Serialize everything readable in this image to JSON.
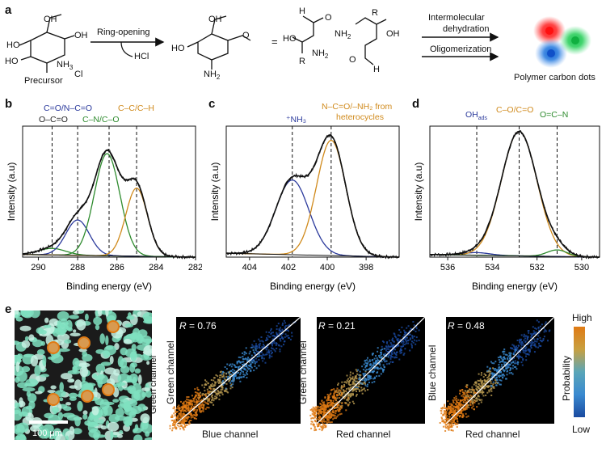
{
  "panel_letters": {
    "a": "a",
    "b": "b",
    "c": "c",
    "d": "d",
    "e": "e"
  },
  "panel_a": {
    "reaction1_label": "Ring-opening",
    "byproduct": "HCl",
    "precursor_label": "Precursor",
    "nh3": "NH",
    "nh3_sub": "3",
    "cl": "Cl",
    "nh2": "NH",
    "nh2_sub": "2",
    "ho": "HO",
    "oh": "OH",
    "o": "O",
    "h": "H",
    "r": "R",
    "equals": "=",
    "step2_line1": "Intermolecular",
    "step2_line2": "dehydration",
    "step3": "Oligomerization",
    "product_label": "Polymer carbon dots"
  },
  "panel_b": {
    "labels": [
      "C=O/N–C=O",
      "O–C=O",
      "C–N/C–O",
      "C–C/C–H"
    ],
    "label_colors": [
      "#2b3a9c",
      "#222222",
      "#2e8b2e",
      "#d08a1c"
    ]
  },
  "panel_c": {
    "labels": [
      "⁺NH₃",
      "N–C=O/–NH₂ from",
      "heterocycles"
    ],
    "label_colors": [
      "#2b3a9c",
      "#d08a1c",
      "#d08a1c"
    ]
  },
  "panel_d": {
    "labels": [
      "OH",
      "ads",
      "C–O/C=O",
      "O=C–N"
    ],
    "label_colors": [
      "#2b3a9c",
      "#2b3a9c",
      "#d08a1c",
      "#2e8b2e"
    ]
  },
  "panel_e": {
    "scale_bar": "100 μm",
    "colorbar_label": "Probability",
    "colorbar_high": "High",
    "colorbar_low": "Low",
    "plots": [
      {
        "r_label": "R",
        "r_value": "= 0.76",
        "xlabel": "Blue channel",
        "ylabel": "Green channel"
      },
      {
        "r_label": "R",
        "r_value": "= 0.21",
        "xlabel": "Red channel",
        "ylabel": "Green channel"
      },
      {
        "r_label": "R",
        "r_value": "= 0.48",
        "xlabel": "Red channel",
        "ylabel": "Blue channel"
      }
    ]
  },
  "chart_data": [
    {
      "type": "line",
      "panel": "b",
      "xlabel": "Binding energy (eV)",
      "ylabel": "Intensity (a.u)",
      "xlim": [
        290.8,
        282
      ],
      "x_reversed": true,
      "xticks": [
        290,
        288,
        286,
        284,
        282
      ],
      "dashed_lines": [
        289.3,
        288.0,
        286.4,
        285.0
      ],
      "peaks": [
        {
          "center": 289.3,
          "amp": 0.05,
          "width": 0.7,
          "color": "#2e8b2e"
        },
        {
          "center": 288.0,
          "amp": 0.27,
          "width": 0.6,
          "color": "#2b3a9c"
        },
        {
          "center": 286.5,
          "amp": 0.78,
          "width": 0.65,
          "color": "#2e8b2e"
        },
        {
          "center": 285.0,
          "amp": 0.52,
          "width": 0.55,
          "color": "#d08a1c"
        }
      ],
      "baseline": [
        0.02,
        0.0
      ]
    },
    {
      "type": "line",
      "panel": "c",
      "xlabel": "Binding energy (eV)",
      "ylabel": "Intensity (a.u)",
      "xlim": [
        405.2,
        396.3
      ],
      "x_reversed": true,
      "xticks": [
        404,
        402,
        400,
        398
      ],
      "dashed_lines": [
        401.8,
        399.8
      ],
      "peaks": [
        {
          "center": 401.8,
          "amp": 0.57,
          "width": 0.85,
          "color": "#2b3a9c"
        },
        {
          "center": 399.8,
          "amp": 0.88,
          "width": 0.75,
          "color": "#d08a1c"
        }
      ],
      "baseline": [
        0.03,
        0.0
      ]
    },
    {
      "type": "line",
      "panel": "d",
      "xlabel": "Binding energy (eV)",
      "ylabel": "Intensity (a.u)",
      "xlim": [
        536.8,
        529.2
      ],
      "x_reversed": true,
      "xticks": [
        536,
        534,
        532,
        530
      ],
      "dashed_lines": [
        534.7,
        532.8,
        531.1
      ],
      "peaks": [
        {
          "center": 534.7,
          "amp": 0.02,
          "width": 0.6,
          "color": "#2b3a9c"
        },
        {
          "center": 532.8,
          "amp": 0.95,
          "width": 0.8,
          "color": "#d08a1c"
        },
        {
          "center": 531.1,
          "amp": 0.05,
          "width": 0.45,
          "color": "#2e8b2e"
        }
      ],
      "baseline": [
        0.02,
        0.0
      ]
    }
  ]
}
